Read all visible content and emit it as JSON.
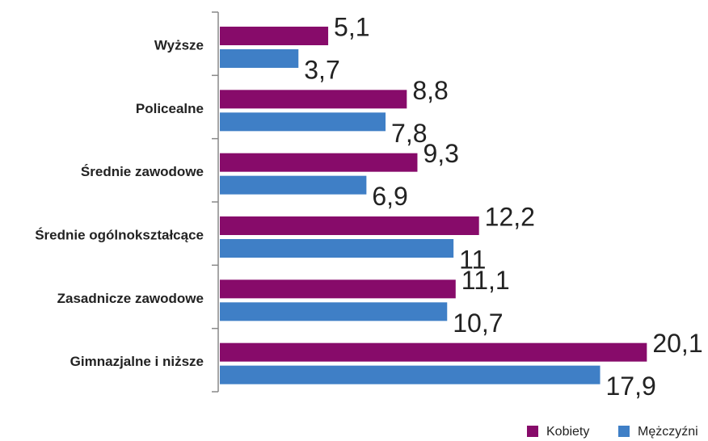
{
  "chart_data": {
    "type": "bar",
    "orientation": "horizontal",
    "categories": [
      "Wyższe",
      "Policealne",
      "Średnie zawodowe",
      "Średnie ogólnokształcące",
      "Zasadnicze zawodowe",
      "Gimnazjalne i niższe"
    ],
    "series": [
      {
        "name": "Kobiety",
        "color": "#870b6a",
        "values": [
          5.1,
          8.8,
          9.3,
          12.2,
          11.1,
          20.1
        ],
        "value_labels": [
          "5,1",
          "8,8",
          "9,3",
          "12,2",
          "11,1",
          "20,1"
        ]
      },
      {
        "name": "Mężczyźni",
        "color": "#3f7fc6",
        "values": [
          3.7,
          7.8,
          6.9,
          11,
          10.7,
          17.9
        ],
        "value_labels": [
          "3,7",
          "7,8",
          "6,9",
          "11",
          "10,7",
          "17,9"
        ]
      }
    ],
    "xlim": [
      0,
      21
    ],
    "legend": "bottom-right"
  }
}
